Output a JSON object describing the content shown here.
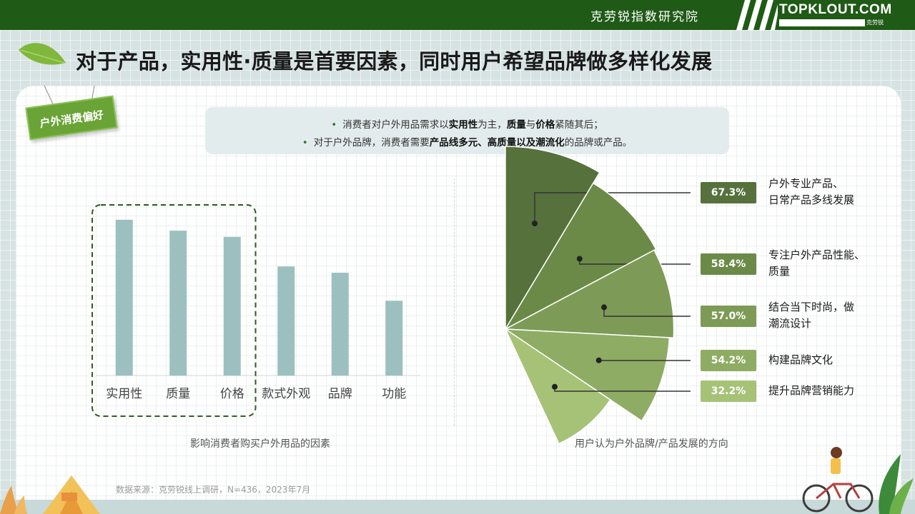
{
  "header": {
    "org_name": "克劳锐指数研究院",
    "logo_text": "TOPKLOUT.COM",
    "logo_sub": "克劳锐"
  },
  "title": "对于产品，实用性·质量是首要因素，同时用户希望品牌做多样化发展",
  "section_tag": "户外消费偏好",
  "summary": {
    "line1": [
      {
        "t": "消费者对户外用品需求以",
        "b": false
      },
      {
        "t": "实用性",
        "b": true
      },
      {
        "t": "为主，",
        "b": false
      },
      {
        "t": "质量",
        "b": true
      },
      {
        "t": "与",
        "b": false
      },
      {
        "t": "价格",
        "b": true
      },
      {
        "t": "紧随其后；",
        "b": false
      }
    ],
    "line2": [
      {
        "t": "对于户外品牌，消费者需要",
        "b": false
      },
      {
        "t": "产品线多元、高质量以及潮流化",
        "b": true
      },
      {
        "t": "的品牌或产品。",
        "b": false
      }
    ]
  },
  "colors": {
    "header_green": "#1f5a16",
    "bar_color": "#9cc0bf",
    "highlight_dash": "#2e5e1f",
    "petal_colors": [
      "#56713c",
      "#6b8a48",
      "#7d9b56",
      "#8eac63",
      "#a6c277"
    ]
  },
  "chart_data": [
    {
      "type": "bar",
      "categories": [
        "实用性",
        "质量",
        "价格",
        "款式外观",
        "品牌",
        "功能"
      ],
      "values": [
        100,
        93,
        89,
        70,
        66,
        48
      ],
      "ylim": [
        0,
        110
      ],
      "highlighted_categories": [
        "实用性",
        "质量",
        "价格"
      ],
      "caption": "影响消费者购买户外用品的因素",
      "xlabel": "",
      "ylabel": ""
    },
    {
      "type": "pie",
      "style": "rose-fan",
      "categories": [
        "户外专业产品、\n日常产品多线发展",
        "专注户外产品性能、\n质量",
        "结合当下时尚，做\n潮流设计",
        "构建品牌文化",
        "提升品牌营销能力"
      ],
      "values": [
        67.3,
        58.4,
        57.0,
        54.2,
        32.2
      ],
      "value_labels": [
        "67.3%",
        "58.4%",
        "57.0%",
        "54.2%",
        "32.2%"
      ],
      "caption": "用户认为户外品牌/产品发展的方向"
    }
  ],
  "source": "数据来源：克劳锐线上调研，N=436，2023年7月"
}
